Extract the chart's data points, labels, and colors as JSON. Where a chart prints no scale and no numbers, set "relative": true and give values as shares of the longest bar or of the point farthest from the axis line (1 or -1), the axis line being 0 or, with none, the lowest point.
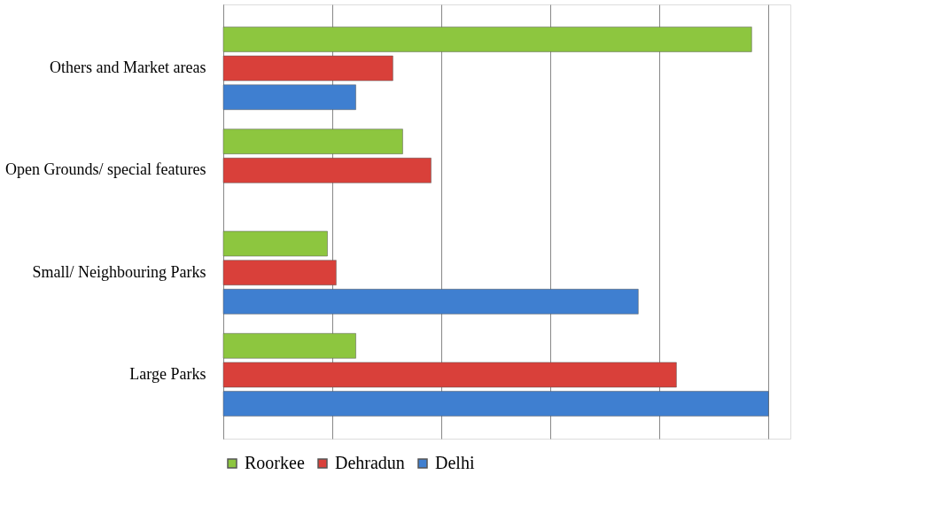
{
  "chart_data": {
    "type": "bar",
    "orientation": "horizontal",
    "relative": true,
    "categories": [
      "Others and Market areas",
      "Open Grounds/ special features",
      "Small/ Neighbouring Parks",
      "Large Parks"
    ],
    "series": [
      {
        "name": "Roorkee",
        "color": "#8dc63f",
        "values": [
          0.969,
          0.329,
          0.191,
          0.243
        ]
      },
      {
        "name": "Dehradun",
        "color": "#d9403a",
        "values": [
          0.311,
          0.381,
          0.207,
          0.831
        ]
      },
      {
        "name": "Delhi",
        "color": "#3f7fd0",
        "values": [
          0.243,
          null,
          0.761,
          1
        ]
      }
    ],
    "grid": "x",
    "legend": "bottom"
  }
}
